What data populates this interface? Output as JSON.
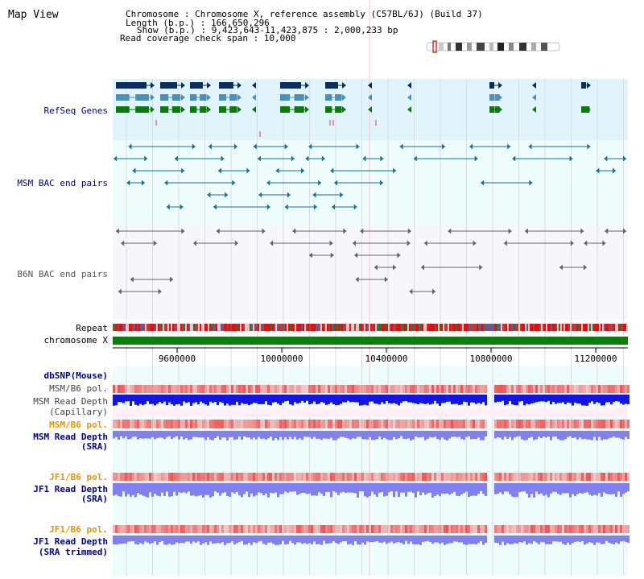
{
  "view": {
    "title": "Map View",
    "info": {
      "chromosome_line": "Chromosome    : Chromosome X, reference assembly (C57BL/6J) (Build 37)",
      "length_line": "Length (b.p.) : 166,650,296",
      "show_line": "Show (b.p.) : 9,423,643-11,423,875 : 2,000,233 bp",
      "span_line": "Read coverage check span : 10,000"
    }
  },
  "tracks": {
    "refseq": "RefSeq Genes",
    "msm_bac": "MSM BAC end pairs",
    "b6n_bac": "B6N BAC end pairs",
    "repeat": "Repeat",
    "chromosome": "chromosome X",
    "dbsnp": "dbSNP(Mouse)",
    "msm_pol_1": "MSM/B6 pol.",
    "msm_depth_cap_1": "MSM Read Depth",
    "msm_depth_cap_2": "(Capillary)",
    "msm_pol_2": "MSM/B6 pol.",
    "msm_depth_sra_1": "MSM Read Depth",
    "msm_depth_sra_2": "(SRA)",
    "jf1_pol_1": "JF1/B6 pol.",
    "jf1_depth_1": "JF1 Read Depth",
    "jf1_depth_2": "(SRA)",
    "jf1_pol_2": "JF1/B6 pol.",
    "jf1_trim_1": "JF1 Read Depth",
    "jf1_trim_2": "(SRA trimmed)"
  },
  "axis": {
    "ticks": [
      "9600000",
      "10000000",
      "10400000",
      "10800000",
      "11200000"
    ]
  },
  "colors": {
    "refseq_bg": "#e1f3fb",
    "msm_bg": "#eefcfb",
    "b6n_bg": "#f7f7fb",
    "depth_bg": "#eefcfb",
    "dark_navy": "#0b2e5e",
    "steel": "#4a90b8",
    "green": "#0a7a0a",
    "label_blue": "#00008b",
    "label_orange": "#e69500",
    "depth_blue": "#1414e6",
    "depth_lavender": "#8080f0",
    "pol_red": "#f04040",
    "chrom_green": "#0a7d0a"
  },
  "icons": {
    "ideogram": "chromosome-ideogram-icon"
  }
}
